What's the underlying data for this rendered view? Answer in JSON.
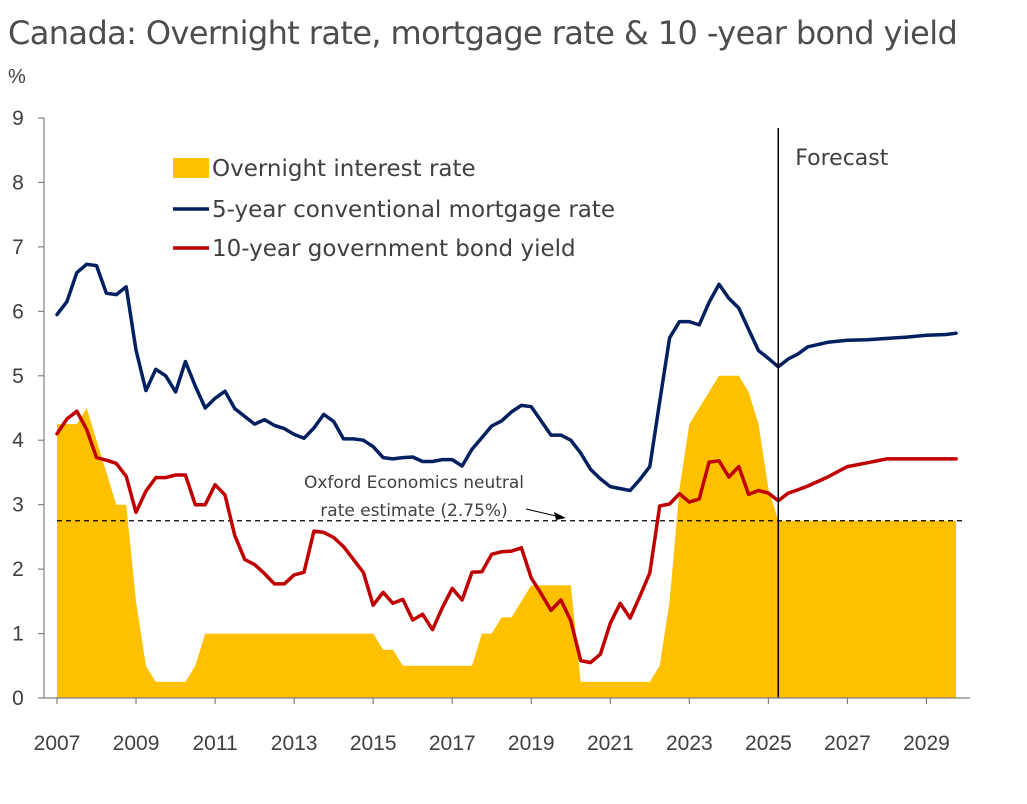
{
  "chart_data": {
    "type": "line",
    "title": "Canada: Overnight rate, mortgage rate & 10 -year bond yield",
    "ylabel": "%",
    "xlabel": "",
    "ylim": [
      0,
      9
    ],
    "xlim": [
      2007,
      2030
    ],
    "yticks": [
      "0",
      "1",
      "2",
      "3",
      "4",
      "5",
      "6",
      "7",
      "8",
      "9"
    ],
    "xticks": [
      "2007",
      "2009",
      "2011",
      "2013",
      "2015",
      "2017",
      "2019",
      "2021",
      "2023",
      "2025",
      "2027",
      "2029"
    ],
    "grid": false,
    "legend_position": "top-left",
    "colors": {
      "overnight": "#ffc000",
      "mortgage": "#002060",
      "bond": "#c00000",
      "text": "#404040"
    },
    "forecast": {
      "x": 2025.25,
      "label": "Forecast"
    },
    "neutral": {
      "y": 2.75,
      "label_line1": "Oxford Economics neutral",
      "label_line2": "rate estimate (2.75%)"
    },
    "series": [
      {
        "name": "Overnight interest rate",
        "type": "area",
        "points": [
          [
            2007,
            4.25
          ],
          [
            2007.5,
            4.25
          ],
          [
            2007.75,
            4.5
          ],
          [
            2008,
            4.0
          ],
          [
            2008.25,
            3.5
          ],
          [
            2008.5,
            3.0
          ],
          [
            2008.75,
            3.0
          ],
          [
            2009,
            1.5
          ],
          [
            2009.25,
            0.5
          ],
          [
            2009.5,
            0.25
          ],
          [
            2010.25,
            0.25
          ],
          [
            2010.5,
            0.5
          ],
          [
            2010.75,
            1.0
          ],
          [
            2015,
            1.0
          ],
          [
            2015.25,
            0.75
          ],
          [
            2015.5,
            0.75
          ],
          [
            2015.75,
            0.5
          ],
          [
            2017.5,
            0.5
          ],
          [
            2017.75,
            1.0
          ],
          [
            2018,
            1.0
          ],
          [
            2018.25,
            1.25
          ],
          [
            2018.5,
            1.25
          ],
          [
            2018.75,
            1.5
          ],
          [
            2019,
            1.75
          ],
          [
            2020,
            1.75
          ],
          [
            2020.25,
            0.25
          ],
          [
            2022,
            0.25
          ],
          [
            2022.25,
            0.5
          ],
          [
            2022.5,
            1.5
          ],
          [
            2022.75,
            3.25
          ],
          [
            2023,
            4.25
          ],
          [
            2023.25,
            4.5
          ],
          [
            2023.5,
            4.75
          ],
          [
            2023.75,
            5.0
          ],
          [
            2024.25,
            5.0
          ],
          [
            2024.5,
            4.75
          ],
          [
            2024.75,
            4.25
          ],
          [
            2025,
            3.25
          ],
          [
            2025.25,
            2.75
          ],
          [
            2029.75,
            2.75
          ]
        ]
      },
      {
        "name": "5-year conventional mortgage rate",
        "type": "line",
        "points": [
          [
            2007,
            5.95
          ],
          [
            2007.25,
            6.15
          ],
          [
            2007.5,
            6.6
          ],
          [
            2007.75,
            6.73
          ],
          [
            2008,
            6.71
          ],
          [
            2008.25,
            6.28
          ],
          [
            2008.5,
            6.26
          ],
          [
            2008.75,
            6.38
          ],
          [
            2009,
            5.4
          ],
          [
            2009.25,
            4.77
          ],
          [
            2009.5,
            5.1
          ],
          [
            2009.75,
            5.0
          ],
          [
            2010,
            4.75
          ],
          [
            2010.25,
            5.22
          ],
          [
            2010.5,
            4.84
          ],
          [
            2010.75,
            4.5
          ],
          [
            2011,
            4.65
          ],
          [
            2011.25,
            4.76
          ],
          [
            2011.5,
            4.49
          ],
          [
            2011.75,
            4.37
          ],
          [
            2012,
            4.25
          ],
          [
            2012.25,
            4.32
          ],
          [
            2012.5,
            4.23
          ],
          [
            2012.75,
            4.18
          ],
          [
            2013,
            4.09
          ],
          [
            2013.25,
            4.03
          ],
          [
            2013.5,
            4.19
          ],
          [
            2013.75,
            4.4
          ],
          [
            2014,
            4.29
          ],
          [
            2014.25,
            4.02
          ],
          [
            2014.5,
            4.02
          ],
          [
            2014.75,
            4.0
          ],
          [
            2015,
            3.9
          ],
          [
            2015.25,
            3.73
          ],
          [
            2015.5,
            3.71
          ],
          [
            2015.75,
            3.73
          ],
          [
            2016,
            3.74
          ],
          [
            2016.25,
            3.67
          ],
          [
            2016.5,
            3.67
          ],
          [
            2016.75,
            3.7
          ],
          [
            2017,
            3.7
          ],
          [
            2017.25,
            3.6
          ],
          [
            2017.5,
            3.86
          ],
          [
            2017.75,
            4.04
          ],
          [
            2018,
            4.22
          ],
          [
            2018.25,
            4.3
          ],
          [
            2018.5,
            4.44
          ],
          [
            2018.75,
            4.54
          ],
          [
            2019,
            4.52
          ],
          [
            2019.25,
            4.3
          ],
          [
            2019.5,
            4.08
          ],
          [
            2019.75,
            4.08
          ],
          [
            2020,
            4.0
          ],
          [
            2020.25,
            3.8
          ],
          [
            2020.5,
            3.55
          ],
          [
            2020.75,
            3.4
          ],
          [
            2021,
            3.28
          ],
          [
            2021.25,
            3.25
          ],
          [
            2021.5,
            3.22
          ],
          [
            2021.75,
            3.39
          ],
          [
            2022,
            3.59
          ],
          [
            2022.25,
            4.6
          ],
          [
            2022.5,
            5.59
          ],
          [
            2022.75,
            5.84
          ],
          [
            2023,
            5.84
          ],
          [
            2023.25,
            5.79
          ],
          [
            2023.5,
            6.14
          ],
          [
            2023.75,
            6.42
          ],
          [
            2024,
            6.2
          ],
          [
            2024.25,
            6.05
          ],
          [
            2024.5,
            5.72
          ],
          [
            2024.75,
            5.39
          ],
          [
            2025,
            5.27
          ],
          [
            2025.25,
            5.14
          ],
          [
            2025.5,
            5.26
          ],
          [
            2025.75,
            5.34
          ],
          [
            2026,
            5.45
          ],
          [
            2026.5,
            5.52
          ],
          [
            2027,
            5.55
          ],
          [
            2027.5,
            5.56
          ],
          [
            2028,
            5.58
          ],
          [
            2028.5,
            5.6
          ],
          [
            2029,
            5.63
          ],
          [
            2029.5,
            5.64
          ],
          [
            2029.75,
            5.66
          ]
        ]
      },
      {
        "name": "10-year government bond yield",
        "type": "line",
        "points": [
          [
            2007,
            4.1
          ],
          [
            2007.25,
            4.33
          ],
          [
            2007.5,
            4.45
          ],
          [
            2007.75,
            4.17
          ],
          [
            2008,
            3.73
          ],
          [
            2008.25,
            3.69
          ],
          [
            2008.5,
            3.64
          ],
          [
            2008.75,
            3.44
          ],
          [
            2009,
            2.88
          ],
          [
            2009.25,
            3.21
          ],
          [
            2009.5,
            3.42
          ],
          [
            2009.75,
            3.42
          ],
          [
            2010,
            3.46
          ],
          [
            2010.25,
            3.46
          ],
          [
            2010.5,
            3.0
          ],
          [
            2010.75,
            3.0
          ],
          [
            2011,
            3.31
          ],
          [
            2011.25,
            3.15
          ],
          [
            2011.5,
            2.52
          ],
          [
            2011.75,
            2.15
          ],
          [
            2012,
            2.07
          ],
          [
            2012.25,
            1.93
          ],
          [
            2012.5,
            1.77
          ],
          [
            2012.75,
            1.77
          ],
          [
            2013,
            1.91
          ],
          [
            2013.25,
            1.95
          ],
          [
            2013.5,
            2.59
          ],
          [
            2013.75,
            2.57
          ],
          [
            2014,
            2.49
          ],
          [
            2014.25,
            2.35
          ],
          [
            2014.5,
            2.15
          ],
          [
            2014.75,
            1.95
          ],
          [
            2015,
            1.44
          ],
          [
            2015.25,
            1.64
          ],
          [
            2015.5,
            1.47
          ],
          [
            2015.75,
            1.53
          ],
          [
            2016,
            1.21
          ],
          [
            2016.25,
            1.3
          ],
          [
            2016.5,
            1.06
          ],
          [
            2016.75,
            1.4
          ],
          [
            2017,
            1.7
          ],
          [
            2017.25,
            1.52
          ],
          [
            2017.5,
            1.95
          ],
          [
            2017.75,
            1.96
          ],
          [
            2018,
            2.23
          ],
          [
            2018.25,
            2.27
          ],
          [
            2018.5,
            2.28
          ],
          [
            2018.75,
            2.33
          ],
          [
            2019,
            1.86
          ],
          [
            2019.25,
            1.62
          ],
          [
            2019.5,
            1.36
          ],
          [
            2019.75,
            1.52
          ],
          [
            2020,
            1.2
          ],
          [
            2020.25,
            0.58
          ],
          [
            2020.5,
            0.55
          ],
          [
            2020.75,
            0.68
          ],
          [
            2021,
            1.16
          ],
          [
            2021.25,
            1.47
          ],
          [
            2021.5,
            1.24
          ],
          [
            2021.75,
            1.58
          ],
          [
            2022,
            1.94
          ],
          [
            2022.25,
            2.98
          ],
          [
            2022.5,
            3.01
          ],
          [
            2022.75,
            3.17
          ],
          [
            2023,
            3.04
          ],
          [
            2023.25,
            3.09
          ],
          [
            2023.5,
            3.66
          ],
          [
            2023.75,
            3.68
          ],
          [
            2024,
            3.43
          ],
          [
            2024.25,
            3.59
          ],
          [
            2024.5,
            3.16
          ],
          [
            2024.75,
            3.22
          ],
          [
            2025,
            3.18
          ],
          [
            2025.25,
            3.06
          ],
          [
            2025.5,
            3.18
          ],
          [
            2025.75,
            3.23
          ],
          [
            2026,
            3.29
          ],
          [
            2026.5,
            3.43
          ],
          [
            2027,
            3.59
          ],
          [
            2027.5,
            3.65
          ],
          [
            2028,
            3.71
          ],
          [
            2029,
            3.71
          ],
          [
            2029.75,
            3.71
          ]
        ]
      }
    ]
  }
}
